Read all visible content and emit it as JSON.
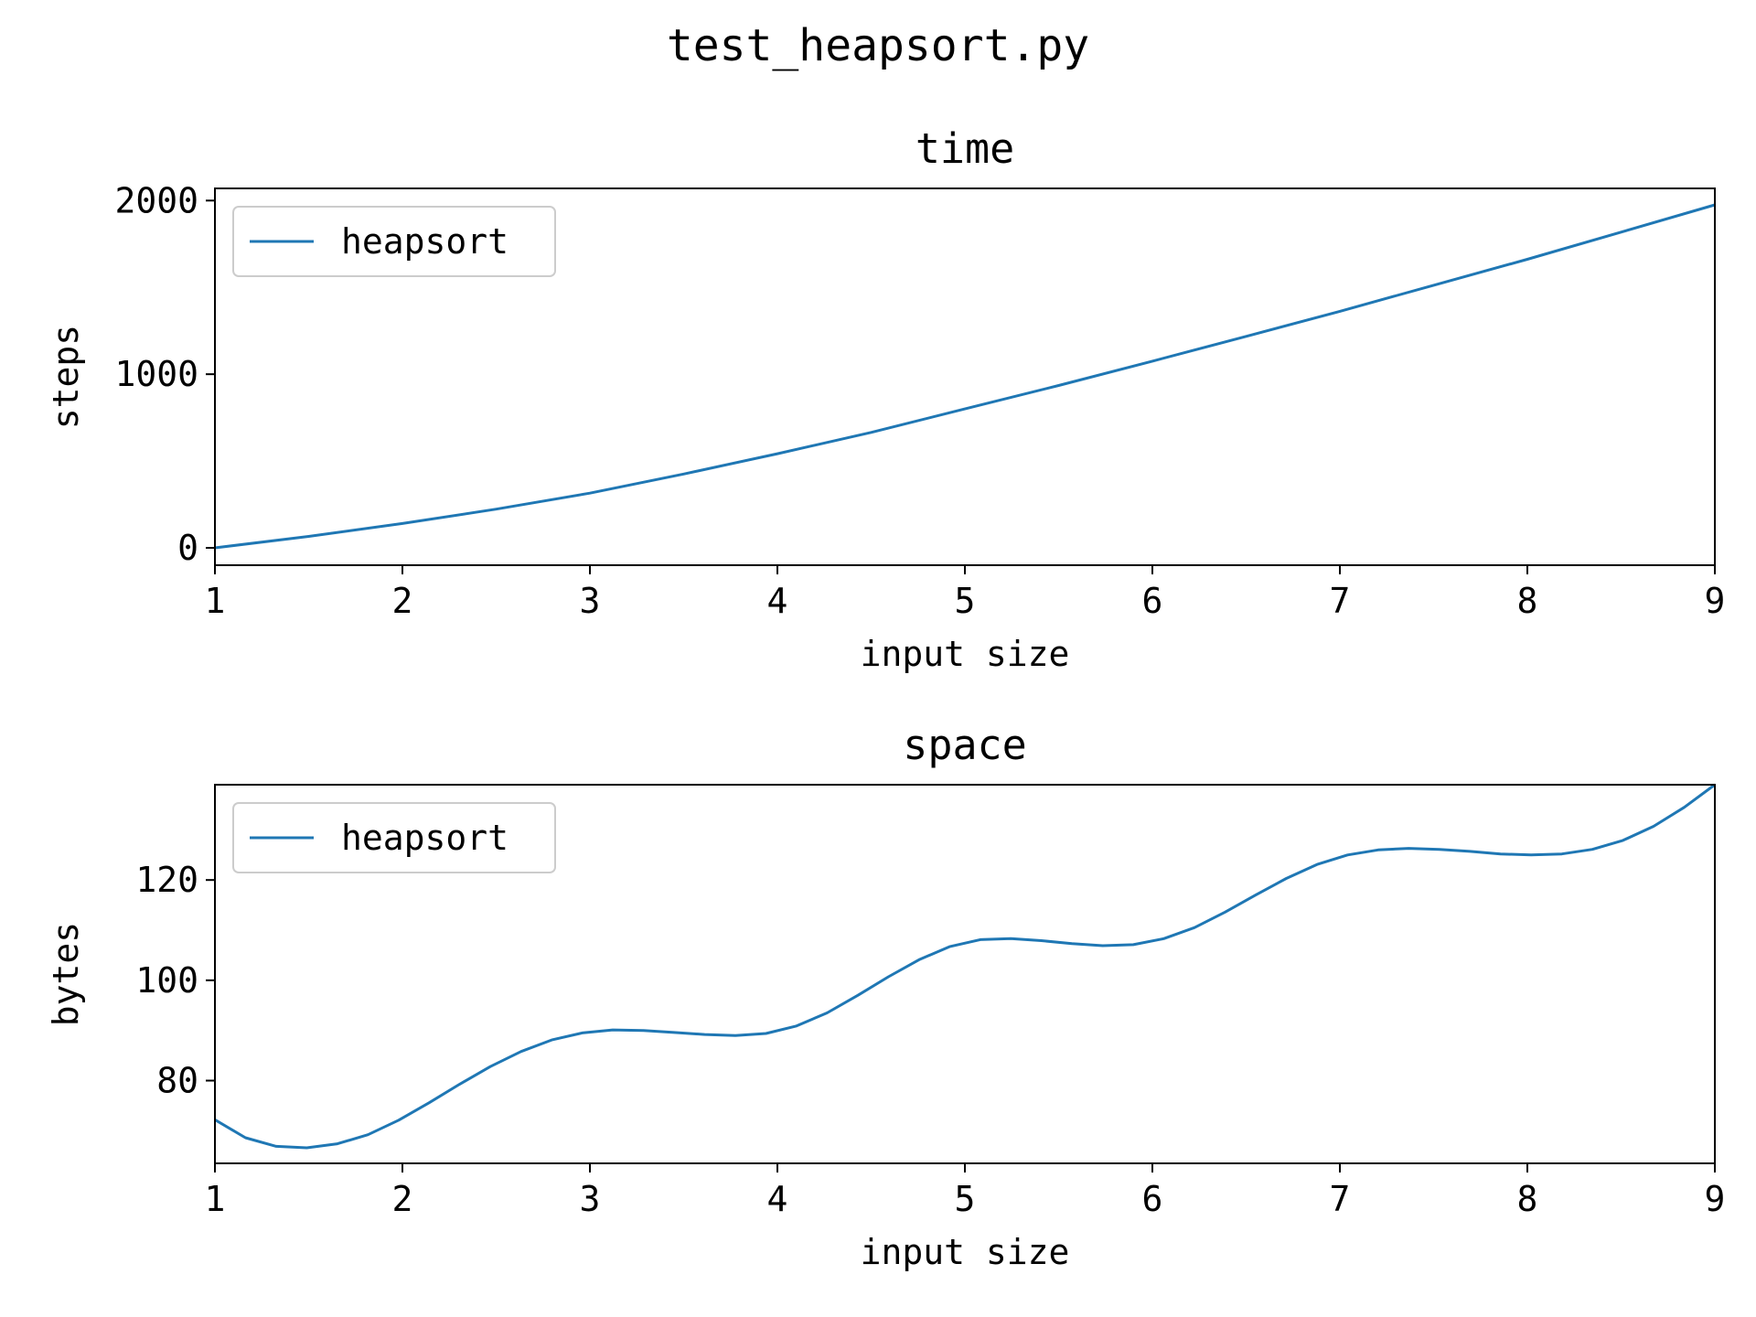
{
  "figure": {
    "suptitle": "test_heapsort.py",
    "line_color": "#1f77b4"
  },
  "chart_data": [
    {
      "type": "line",
      "title": "time",
      "xlabel": "input size",
      "ylabel": "steps",
      "xlim": [
        1,
        9
      ],
      "ylim": [
        -100,
        2070
      ],
      "xticks": [
        1,
        2,
        3,
        4,
        5,
        6,
        7,
        8,
        9
      ],
      "yticks": [
        0,
        1000,
        2000
      ],
      "grid": false,
      "legend": "upper left",
      "series": [
        {
          "name": "heapsort",
          "color": "#1f77b4",
          "x": [
            1,
            1.5,
            2,
            2.5,
            3,
            3.5,
            4,
            4.5,
            5,
            5.5,
            6,
            6.5,
            7,
            7.5,
            8,
            8.5,
            9
          ],
          "y": [
            0,
            66,
            140,
            223,
            315,
            425,
            542,
            665,
            800,
            935,
            1075,
            1218,
            1362,
            1512,
            1662,
            1818,
            1975
          ]
        }
      ]
    },
    {
      "type": "line",
      "title": "space",
      "xlabel": "input size",
      "ylabel": "bytes",
      "xlim": [
        1,
        9
      ],
      "ylim": [
        63.5,
        139
      ],
      "xticks": [
        1,
        2,
        3,
        4,
        5,
        6,
        7,
        8,
        9
      ],
      "yticks": [
        80,
        100,
        120
      ],
      "grid": false,
      "legend": "upper left",
      "series": [
        {
          "name": "heapsort",
          "color": "#1f77b4",
          "x": [
            1,
            1.163,
            1.327,
            1.49,
            1.653,
            1.816,
            1.98,
            2.143,
            2.306,
            2.469,
            2.633,
            2.796,
            2.959,
            3.122,
            3.286,
            3.449,
            3.612,
            3.776,
            3.939,
            4.102,
            4.265,
            4.429,
            4.592,
            4.755,
            4.918,
            5.082,
            5.245,
            5.408,
            5.571,
            5.735,
            5.898,
            6.061,
            6.224,
            6.388,
            6.551,
            6.714,
            6.878,
            7.041,
            7.204,
            7.367,
            7.531,
            7.694,
            7.857,
            8.02,
            8.184,
            8.347,
            8.51,
            8.673,
            8.837,
            9
          ],
          "y": [
            72.2,
            68.6,
            66.9,
            66.6,
            67.4,
            69.2,
            72.1,
            75.6,
            79.3,
            82.8,
            85.8,
            88.1,
            89.5,
            90.1,
            90,
            89.6,
            89.2,
            89,
            89.4,
            90.9,
            93.5,
            97,
            100.7,
            104.1,
            106.7,
            108.1,
            108.3,
            107.9,
            107.3,
            106.9,
            107.1,
            108.3,
            110.5,
            113.6,
            117,
            120.3,
            123.1,
            125,
            126,
            126.3,
            126.1,
            125.7,
            125.2,
            125,
            125.2,
            126.1,
            127.9,
            130.7,
            134.5,
            139
          ]
        }
      ]
    }
  ]
}
